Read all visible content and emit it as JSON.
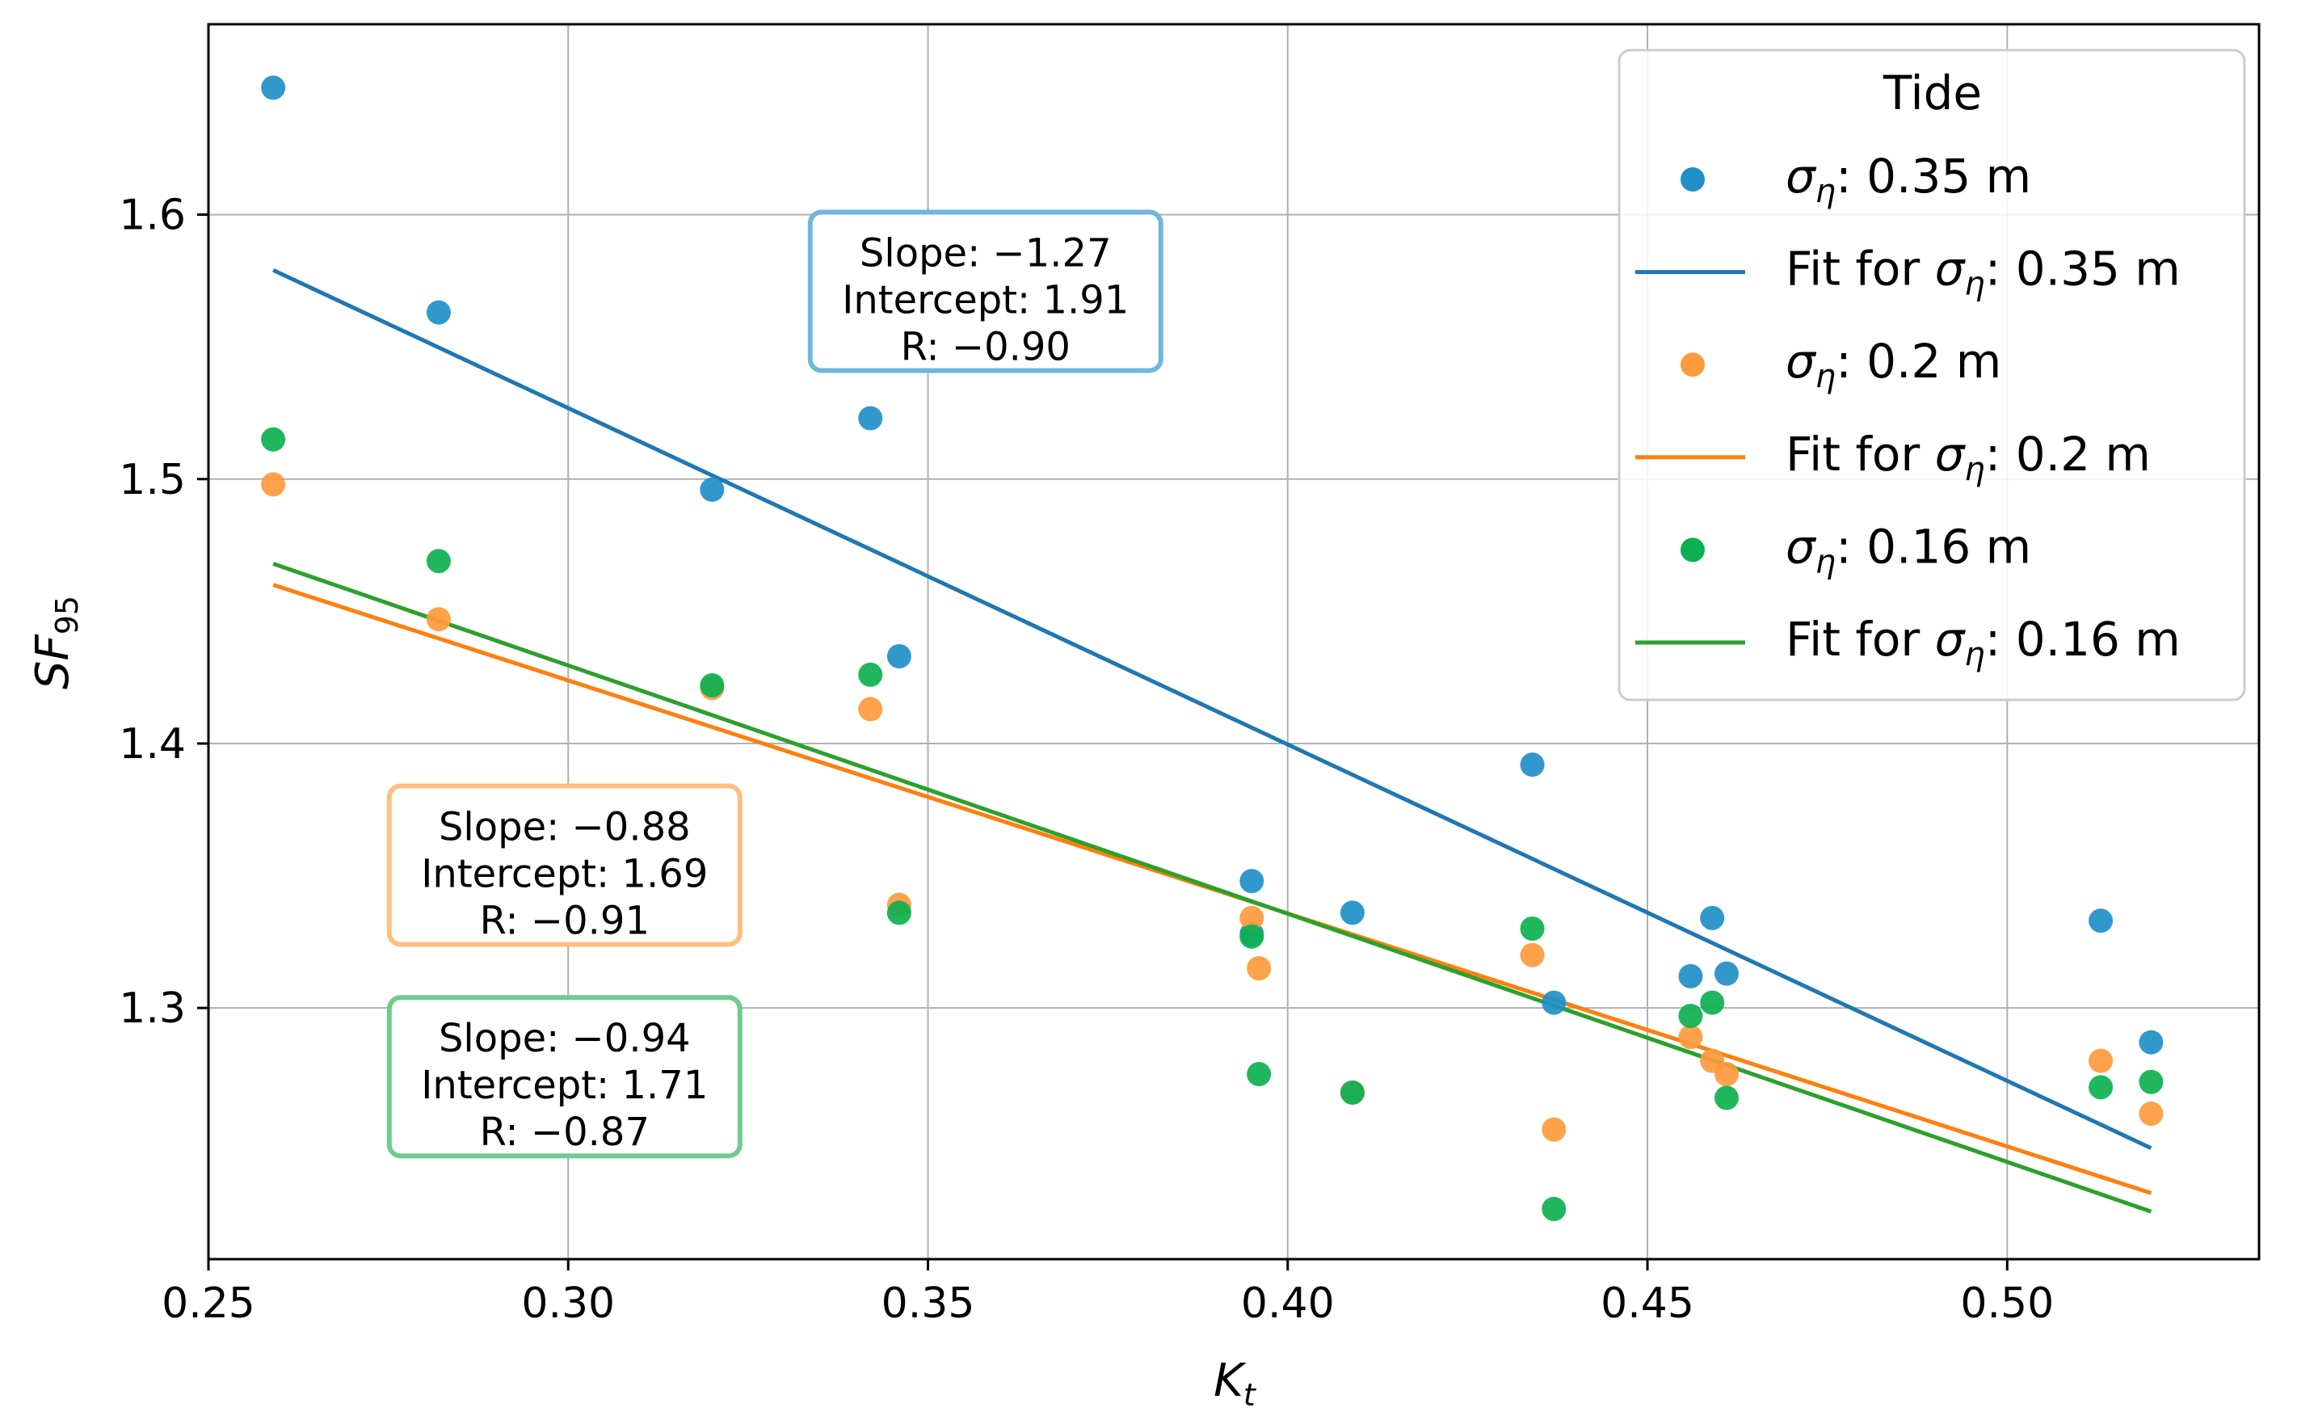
{
  "chart_data": {
    "type": "scatter",
    "title": "",
    "xlabel_main": "K",
    "xlabel_sub": "t",
    "ylabel_main": "SF",
    "ylabel_sub": "95",
    "xlim": [
      0.25,
      0.535
    ],
    "ylim": [
      1.205,
      1.672
    ],
    "xticks": [
      0.25,
      0.3,
      0.35,
      0.4,
      0.45,
      0.5
    ],
    "xtick_labels": [
      "0.25",
      "0.30",
      "0.35",
      "0.40",
      "0.45",
      "0.50"
    ],
    "yticks": [
      1.3,
      1.4,
      1.5,
      1.6
    ],
    "ytick_labels": [
      "1.3",
      "1.4",
      "1.5",
      "1.6"
    ],
    "grid": true,
    "legend": {
      "title": "Tide",
      "placement": "top-right",
      "entries": [
        {
          "kind": "marker",
          "sym": "σ",
          "sub": "η",
          "text": ": 0.35 m",
          "color": "#1f8fc8"
        },
        {
          "kind": "line",
          "prefix": "Fit for ",
          "sym": "σ",
          "sub": "η",
          "text": ": 0.35 m",
          "color": "#1f77b4"
        },
        {
          "kind": "marker",
          "sym": "σ",
          "sub": "η",
          "text": ": 0.2 m",
          "color": "#ff9a3c"
        },
        {
          "kind": "line",
          "prefix": "Fit for ",
          "sym": "σ",
          "sub": "η",
          "text": ": 0.2 m",
          "color": "#ff7f0e"
        },
        {
          "kind": "marker",
          "sym": "σ",
          "sub": "η",
          "text": ": 0.16 m",
          "color": "#0db050"
        },
        {
          "kind": "line",
          "prefix": "Fit for ",
          "sym": "σ",
          "sub": "η",
          "text": ": 0.16 m",
          "color": "#2ca02c"
        }
      ]
    },
    "series": [
      {
        "name": "σ_η: 0.35 m",
        "marker_color": "#1f8fc8",
        "line_color": "#1f77b4",
        "box_color": "#6fb7de",
        "points": [
          [
            0.259,
            1.648
          ],
          [
            0.282,
            1.563
          ],
          [
            0.32,
            1.496
          ],
          [
            0.342,
            1.523
          ],
          [
            0.346,
            1.433
          ],
          [
            0.395,
            1.348
          ],
          [
            0.395,
            1.328
          ],
          [
            0.409,
            1.336
          ],
          [
            0.434,
            1.392
          ],
          [
            0.437,
            1.302
          ],
          [
            0.456,
            1.312
          ],
          [
            0.459,
            1.334
          ],
          [
            0.461,
            1.313
          ],
          [
            0.513,
            1.333
          ],
          [
            0.52,
            1.287
          ]
        ],
        "fit": [
          [
            0.259,
            1.579
          ],
          [
            0.52,
            1.247
          ]
        ],
        "annotation": {
          "lines": [
            "Slope: −1.27",
            "Intercept: 1.91",
            "R: −0.90"
          ],
          "anchor_x": 0.358,
          "anchor_y": 1.571
        }
      },
      {
        "name": "σ_η: 0.2 m",
        "marker_color": "#ff9a3c",
        "line_color": "#ff7f0e",
        "box_color": "#ffbf80",
        "points": [
          [
            0.259,
            1.498
          ],
          [
            0.282,
            1.447
          ],
          [
            0.32,
            1.421
          ],
          [
            0.342,
            1.413
          ],
          [
            0.346,
            1.339
          ],
          [
            0.395,
            1.334
          ],
          [
            0.396,
            1.315
          ],
          [
            0.409,
            1.268
          ],
          [
            0.434,
            1.32
          ],
          [
            0.437,
            1.254
          ],
          [
            0.456,
            1.289
          ],
          [
            0.459,
            1.28
          ],
          [
            0.461,
            1.275
          ],
          [
            0.513,
            1.28
          ],
          [
            0.52,
            1.26
          ]
        ],
        "fit": [
          [
            0.259,
            1.46
          ],
          [
            0.52,
            1.23
          ]
        ],
        "annotation": {
          "lines": [
            "Slope: −0.88",
            "Intercept: 1.69",
            "R: −0.91"
          ],
          "anchor_x": 0.2995,
          "anchor_y": 1.354
        }
      },
      {
        "name": "σ_η: 0.16 m",
        "marker_color": "#0db050",
        "line_color": "#2ca02c",
        "box_color": "#6fcc8e",
        "points": [
          [
            0.259,
            1.515
          ],
          [
            0.282,
            1.469
          ],
          [
            0.32,
            1.422
          ],
          [
            0.342,
            1.426
          ],
          [
            0.346,
            1.336
          ],
          [
            0.395,
            1.327
          ],
          [
            0.396,
            1.275
          ],
          [
            0.409,
            1.268
          ],
          [
            0.434,
            1.33
          ],
          [
            0.437,
            1.224
          ],
          [
            0.456,
            1.297
          ],
          [
            0.459,
            1.302
          ],
          [
            0.461,
            1.266
          ],
          [
            0.513,
            1.27
          ],
          [
            0.52,
            1.272
          ]
        ],
        "fit": [
          [
            0.259,
            1.468
          ],
          [
            0.52,
            1.223
          ]
        ],
        "annotation": {
          "lines": [
            "Slope: −0.94",
            "Intercept: 1.71",
            "R: −0.87"
          ],
          "anchor_x": 0.2995,
          "anchor_y": 1.274
        }
      }
    ]
  }
}
